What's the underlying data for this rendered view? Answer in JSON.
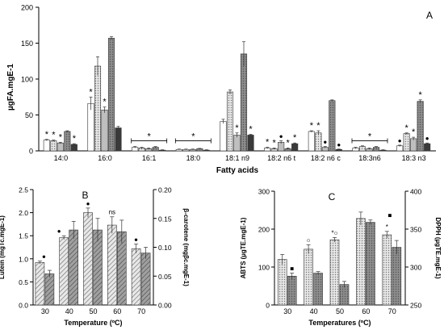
{
  "colors": {
    "c1": "#ffffff",
    "c2": "#d9d9d9",
    "c3": "#bfbfbf",
    "c4": "#9a9a9a",
    "c5": "#6e6e6e",
    "c6": "#3a3a3a",
    "lightbar": "#cfcfcf",
    "darkbar": "#8c8c8c"
  },
  "chart_data": [
    {
      "type": "bar",
      "panel_label": "A",
      "xlabel": "Fatty acids",
      "ylabel": "µgFA.mgE-1",
      "ylim": [
        0,
        200
      ],
      "yticks": [
        0,
        50,
        100,
        150,
        200
      ],
      "categories": [
        "14:0",
        "16:0",
        "16:1",
        "18:0",
        "18:1 n9",
        "18:2 n6 t",
        "18:2 n6 c",
        "18:3n6",
        "18:3 n3"
      ],
      "series": [
        {
          "values": [
            15,
            66,
            5,
            2,
            41,
            4,
            27,
            4,
            7
          ],
          "errors": [
            1,
            9,
            1,
            0.5,
            3,
            1,
            1,
            1,
            1
          ]
        },
        {
          "values": [
            14,
            118,
            4,
            2,
            82,
            3,
            25,
            6,
            24
          ],
          "errors": [
            1,
            13,
            1,
            0.5,
            3,
            1,
            3,
            1,
            1
          ]
        },
        {
          "values": [
            11,
            57,
            3,
            2,
            22,
            12,
            5,
            3,
            17
          ],
          "errors": [
            1,
            4,
            1,
            0.5,
            3,
            2,
            1,
            1,
            2
          ]
        },
        {
          "values": [
            27,
            157,
            5,
            3,
            135,
            3,
            70,
            5,
            69
          ],
          "errors": [
            1,
            2,
            1,
            0.5,
            17,
            1,
            1,
            1,
            2
          ]
        },
        {
          "values": [
            9,
            32,
            1,
            1,
            22,
            10,
            2,
            1,
            10
          ],
          "errors": [
            1,
            2,
            0.5,
            0.5,
            1,
            1,
            0.5,
            0.5,
            1
          ]
        }
      ],
      "annotations": [
        "*",
        "●"
      ]
    },
    {
      "type": "bar",
      "panel_label": "B",
      "xlabel": "Temperature (ºC)",
      "ylabel": "Lutein (mgTc.mgE-1)",
      "y2label": "β-carotene (mgβc.mgE-1)",
      "ylim": [
        0,
        2.5
      ],
      "y2lim": [
        0,
        0.2
      ],
      "yticks": [
        0.0,
        0.5,
        1.0,
        1.5,
        2.0,
        2.5
      ],
      "y2ticks": [
        0.0,
        0.05,
        0.1,
        0.15,
        0.2
      ],
      "categories": [
        "30",
        "40",
        "50",
        "60",
        "70"
      ],
      "series": [
        {
          "axis": "left",
          "values": [
            0.92,
            1.46,
            2.0,
            1.73,
            1.22
          ],
          "errors": [
            0.03,
            0.04,
            0.1,
            0.18,
            0.1
          ]
        },
        {
          "axis": "right",
          "values": [
            0.054,
            0.13,
            0.13,
            0.127,
            0.09
          ],
          "errors": [
            0.006,
            0.015,
            0.02,
            0.02,
            0.01
          ]
        }
      ],
      "annotations": [
        "●",
        "●",
        "●",
        "ns",
        "●"
      ]
    },
    {
      "type": "bar",
      "panel_label": "C",
      "xlabel": "Temperatures (ºC)",
      "ylabel": "ABTS (µgTE.mgE-1)",
      "y2label": "DPPH (µgTE.mgE-1)",
      "ylim": [
        0,
        300
      ],
      "y2lim": [
        250,
        400
      ],
      "yticks": [
        0,
        100,
        200,
        300
      ],
      "y2ticks": [
        250,
        300,
        350,
        400
      ],
      "categories": [
        "30",
        "40",
        "50",
        "60",
        "70"
      ],
      "series": [
        {
          "axis": "left",
          "values": [
            120,
            147,
            172,
            228,
            185
          ],
          "errors": [
            13,
            12,
            6,
            17,
            9
          ]
        },
        {
          "axis": "right",
          "values": [
            288,
            292,
            277,
            359,
            326
          ],
          "errors": [
            4,
            2,
            4,
            3,
            9
          ]
        }
      ],
      "annotations": [
        "■",
        "○",
        "*○",
        "■",
        "*"
      ]
    }
  ]
}
